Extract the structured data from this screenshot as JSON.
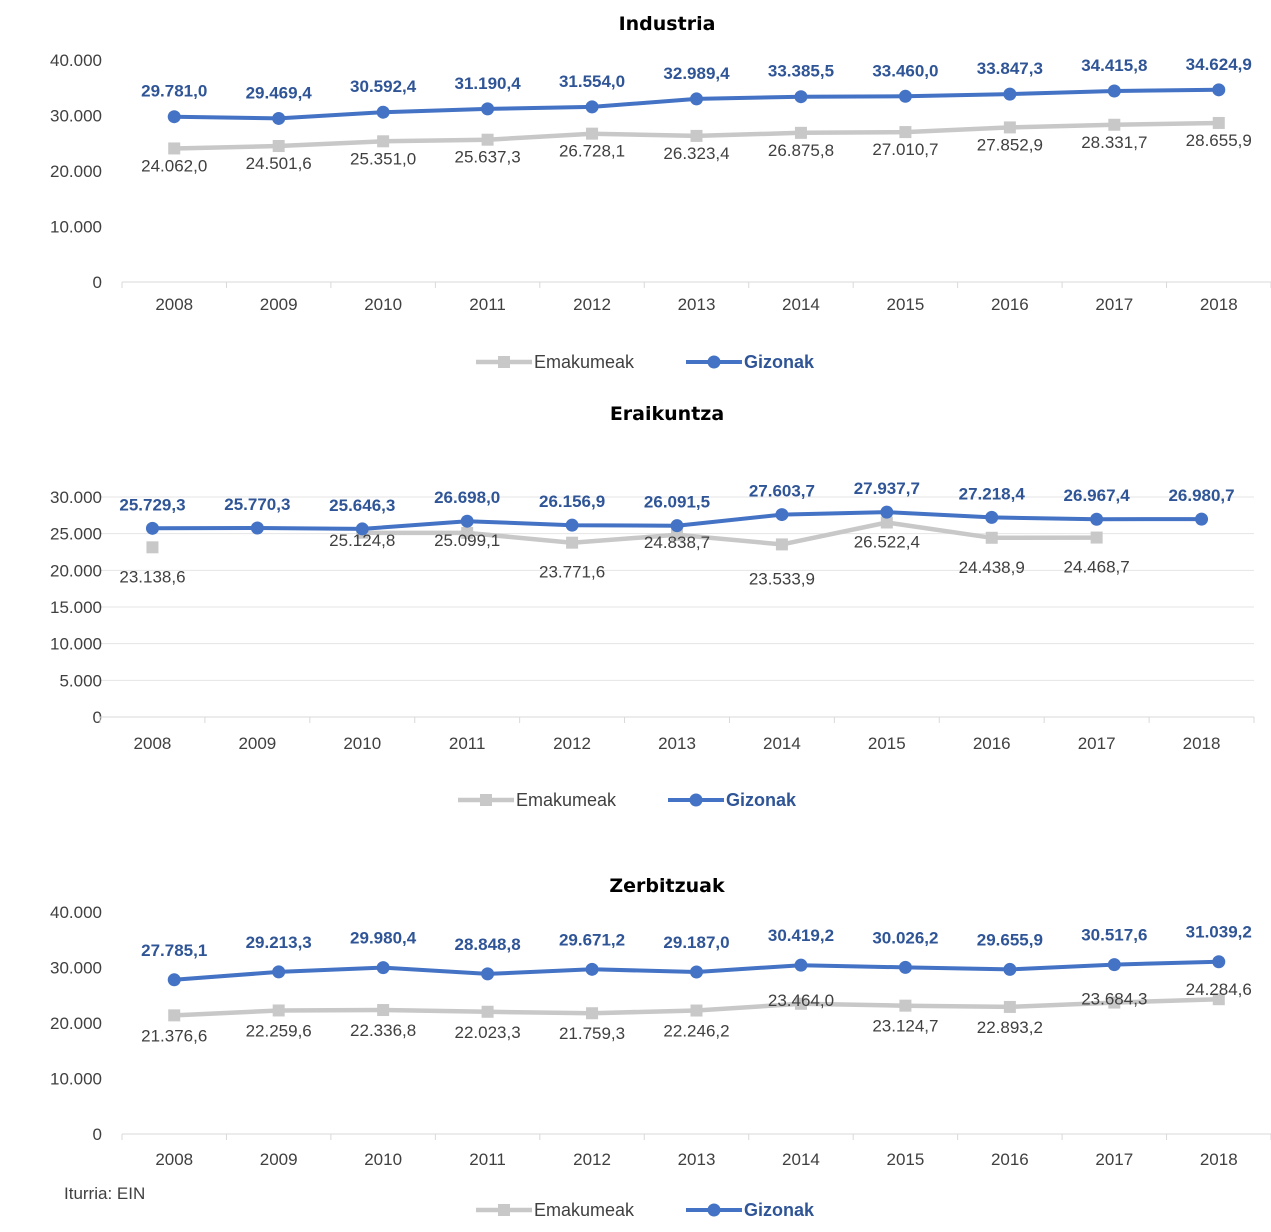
{
  "colors": {
    "women": "#c8c8c8",
    "men": "#4472c4",
    "men_label": "#2f5597",
    "axis": "#d9d9d9",
    "text": "#404040"
  },
  "source": "Iturria: EIN",
  "chart_data": [
    {
      "type": "line",
      "title": "Industria",
      "categories": [
        "2008",
        "2009",
        "2010",
        "2011",
        "2012",
        "2013",
        "2014",
        "2015",
        "2016",
        "2017",
        "2018"
      ],
      "ylim": [
        0,
        40000
      ],
      "yticks": [
        "0",
        "10.000",
        "20.000",
        "30.000",
        "40.000"
      ],
      "ytick_values": [
        0,
        10000,
        20000,
        30000,
        40000
      ],
      "grid": false,
      "legend": "bottom",
      "series": [
        {
          "name": "Emakumeak",
          "key": "women",
          "values": [
            24062.0,
            24501.6,
            25351.0,
            25637.3,
            26728.1,
            26323.4,
            26875.8,
            27010.7,
            27852.9,
            28331.7,
            28655.9
          ],
          "labels": [
            "24.062,0",
            "24.501,6",
            "25.351,0",
            "25.637,3",
            "26.728,1",
            "26.323,4",
            "26.875,8",
            "27.010,7",
            "27.852,9",
            "28.331,7",
            "28.655,9"
          ]
        },
        {
          "name": "Gizonak",
          "key": "men",
          "values": [
            29781.0,
            29469.4,
            30592.4,
            31190.4,
            31554.0,
            32989.4,
            33385.5,
            33460.0,
            33847.3,
            34415.8,
            34624.9
          ],
          "labels": [
            "29.781,0",
            "29.469,4",
            "30.592,4",
            "31.190,4",
            "31.554,0",
            "32.989,4",
            "33.385,5",
            "33.460,0",
            "33.847,3",
            "34.415,8",
            "34.624,9"
          ]
        }
      ]
    },
    {
      "type": "line",
      "title": "Eraikuntza",
      "categories": [
        "2008",
        "2009",
        "2010",
        "2011",
        "2012",
        "2013",
        "2014",
        "2015",
        "2016",
        "2017",
        "2018"
      ],
      "ylim": [
        0,
        30000
      ],
      "yticks": [
        "0",
        "5.000",
        "10.000",
        "15.000",
        "20.000",
        "25.000",
        "30.000"
      ],
      "ytick_values": [
        0,
        5000,
        10000,
        15000,
        20000,
        25000,
        30000
      ],
      "grid": true,
      "legend": "bottom",
      "series": [
        {
          "name": "Emakumeak",
          "key": "women",
          "values": [
            23138.6,
            null,
            25124.8,
            25099.1,
            23771.6,
            24838.7,
            23533.9,
            26522.4,
            24438.9,
            24468.7,
            null
          ],
          "labels": [
            "23.138,6",
            "",
            "25.124,8",
            "25.099,1",
            "23.771,6",
            "24.838,7",
            "23.533,9",
            "26.522,4",
            "24.438,9",
            "24.468,7",
            ""
          ]
        },
        {
          "name": "Gizonak",
          "key": "men",
          "values": [
            25729.3,
            25770.3,
            25646.3,
            26698.0,
            26156.9,
            26091.5,
            27603.7,
            27937.7,
            27218.4,
            26967.4,
            26980.7
          ],
          "labels": [
            "25.729,3",
            "25.770,3",
            "25.646,3",
            "26.698,0",
            "26.156,9",
            "26.091,5",
            "27.603,7",
            "27.937,7",
            "27.218,4",
            "26.967,4",
            "26.980,7"
          ]
        }
      ]
    },
    {
      "type": "line",
      "title": "Zerbitzuak",
      "categories": [
        "2008",
        "2009",
        "2010",
        "2011",
        "2012",
        "2013",
        "2014",
        "2015",
        "2016",
        "2017",
        "2018"
      ],
      "ylim": [
        0,
        40000
      ],
      "yticks": [
        "0",
        "10.000",
        "20.000",
        "30.000",
        "40.000"
      ],
      "ytick_values": [
        0,
        10000,
        20000,
        30000,
        40000
      ],
      "grid": false,
      "legend": "bottom",
      "series": [
        {
          "name": "Emakumeak",
          "key": "women",
          "values": [
            21376.6,
            22259.6,
            22336.8,
            22023.3,
            21759.3,
            22246.2,
            23464.0,
            23124.7,
            22893.2,
            23684.3,
            24284.6
          ],
          "labels": [
            "21.376,6",
            "22.259,6",
            "22.336,8",
            "22.023,3",
            "21.759,3",
            "22.246,2",
            "23.464,0",
            "23.124,7",
            "22.893,2",
            "23.684,3",
            "24.284,6"
          ]
        },
        {
          "name": "Gizonak",
          "key": "men",
          "values": [
            27785.1,
            29213.3,
            29980.4,
            28848.8,
            29671.2,
            29187.0,
            30419.2,
            30026.2,
            29655.9,
            30517.6,
            31039.2
          ],
          "labels": [
            "27.785,1",
            "29.213,3",
            "29.980,4",
            "28.848,8",
            "29.671,2",
            "29.187,0",
            "30.419,2",
            "30.026,2",
            "29.655,9",
            "30.517,6",
            "31.039,2"
          ]
        }
      ]
    }
  ]
}
